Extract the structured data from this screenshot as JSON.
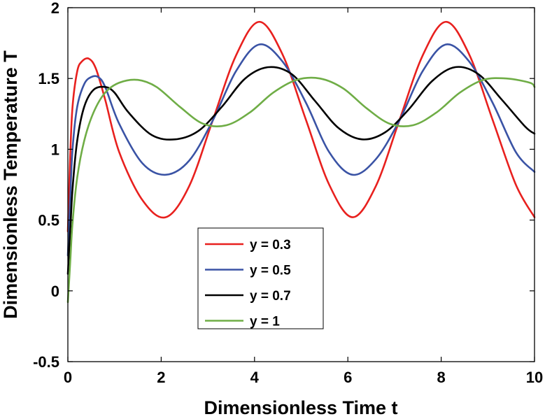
{
  "chart_data": {
    "type": "line",
    "title": "",
    "xlabel": "Dimensionless Time t",
    "ylabel": "Dimensionless Temperature T",
    "xlim": [
      0,
      10
    ],
    "ylim": [
      -0.5,
      2
    ],
    "xticks": [
      0,
      2,
      4,
      6,
      8,
      10
    ],
    "xtick_labels": [
      "0",
      "2",
      "4",
      "6",
      "8",
      "10"
    ],
    "yticks": [
      -0.5,
      0,
      0.5,
      1,
      1.5,
      2
    ],
    "ytick_labels": [
      "-0.5",
      "0",
      "0.5",
      "1",
      "1.5",
      "2"
    ],
    "grid": false,
    "legend_position": "lower-center",
    "series": [
      {
        "name": "y = 0.3",
        "color": "#e8201e",
        "x": [
          0,
          0.05,
          0.1,
          0.2,
          0.3,
          0.45,
          0.6,
          0.8,
          1.1,
          1.6,
          2.1,
          2.6,
          3.1,
          3.6,
          4.1,
          4.6,
          5.1,
          5.6,
          6.1,
          6.6,
          7.1,
          7.6,
          8.1,
          8.6,
          9.1,
          9.6,
          10
        ],
        "values": [
          0.42,
          0.95,
          1.3,
          1.55,
          1.62,
          1.64,
          1.57,
          1.35,
          0.98,
          0.64,
          0.52,
          0.74,
          1.2,
          1.66,
          1.9,
          1.67,
          1.21,
          0.75,
          0.52,
          0.74,
          1.2,
          1.66,
          1.9,
          1.67,
          1.21,
          0.75,
          0.52
        ]
      },
      {
        "name": "y = 0.5",
        "color": "#3a53a5",
        "x": [
          0,
          0.05,
          0.1,
          0.2,
          0.35,
          0.5,
          0.65,
          0.8,
          1.1,
          1.6,
          2.1,
          2.6,
          3.1,
          3.6,
          4.1,
          4.6,
          5.1,
          5.6,
          6.1,
          6.6,
          7.1,
          7.6,
          8.1,
          8.6,
          9.1,
          9.6,
          10
        ],
        "values": [
          0.25,
          0.65,
          1.0,
          1.3,
          1.46,
          1.51,
          1.51,
          1.44,
          1.18,
          0.9,
          0.82,
          0.92,
          1.2,
          1.55,
          1.74,
          1.62,
          1.33,
          0.98,
          0.82,
          0.93,
          1.2,
          1.55,
          1.74,
          1.62,
          1.33,
          0.98,
          0.84
        ]
      },
      {
        "name": "y = 0.7",
        "color": "#000000",
        "x": [
          0,
          0.05,
          0.1,
          0.2,
          0.35,
          0.55,
          0.8,
          1.0,
          1.3,
          1.8,
          2.3,
          2.8,
          3.3,
          3.8,
          4.3,
          4.8,
          5.3,
          5.8,
          6.3,
          6.8,
          7.3,
          7.8,
          8.3,
          8.8,
          9.3,
          9.8,
          10
        ],
        "values": [
          0.12,
          0.42,
          0.72,
          1.06,
          1.3,
          1.42,
          1.44,
          1.4,
          1.26,
          1.1,
          1.07,
          1.13,
          1.3,
          1.5,
          1.58,
          1.53,
          1.34,
          1.15,
          1.07,
          1.12,
          1.28,
          1.48,
          1.58,
          1.53,
          1.35,
          1.16,
          1.11
        ]
      },
      {
        "name": "y = 1",
        "color": "#6fad46",
        "x": [
          0,
          0.05,
          0.1,
          0.2,
          0.35,
          0.55,
          0.8,
          1.1,
          1.5,
          1.9,
          2.4,
          2.9,
          3.4,
          3.9,
          4.4,
          4.9,
          5.4,
          5.9,
          6.4,
          6.9,
          7.4,
          7.9,
          8.4,
          8.9,
          9.4,
          9.9,
          10
        ],
        "values": [
          -0.08,
          0.2,
          0.48,
          0.8,
          1.06,
          1.26,
          1.4,
          1.47,
          1.49,
          1.44,
          1.3,
          1.18,
          1.17,
          1.26,
          1.4,
          1.49,
          1.5,
          1.43,
          1.29,
          1.18,
          1.17,
          1.26,
          1.4,
          1.49,
          1.5,
          1.47,
          1.44
        ]
      }
    ]
  }
}
